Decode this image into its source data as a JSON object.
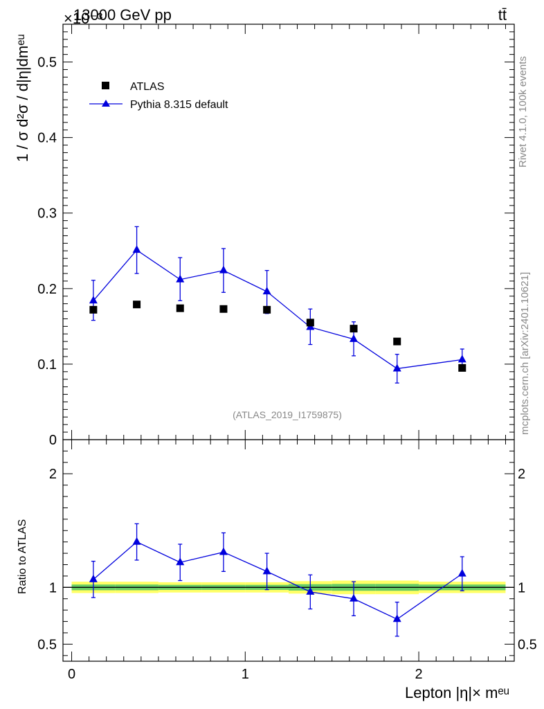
{
  "header": {
    "energy_label": "13000 GeV pp",
    "process_label": "tt̄",
    "exponent_label": "×10⁻³",
    "rivet_label": "Rivet 4.1.0,  100k events",
    "mcplots_label": "mcplots.cern.ch [arXiv:2401.10621]",
    "analysis_label": "(ATLAS_2019_I1759875)"
  },
  "legend": {
    "data_label": "ATLAS",
    "mc_label": "Pythia 8.315 default"
  },
  "colors": {
    "data": "#000000",
    "mc": "#0000dd",
    "band_inner": "#66cc66",
    "band_outer": "#ffff66",
    "grey_text": "#888888"
  },
  "chart_data": [
    {
      "type": "scatter",
      "name": "main",
      "title": "",
      "xlabel": "Lepton |η|× mᵉᵘ",
      "ylabel": "1 / σ  d²σ / d|η|dmᵉᵘ",
      "xlim": [
        -0.05,
        2.55
      ],
      "ylim": [
        0,
        0.55
      ],
      "y_ticks": [
        0.1,
        0.2,
        0.3,
        0.4,
        0.5
      ],
      "y_tick_labels": [
        "0.1",
        "0.2",
        "0.3",
        "0.4",
        "0.5"
      ],
      "y_zero_label": "0",
      "series": [
        {
          "name": "ATLAS",
          "x": [
            0.125,
            0.375,
            0.625,
            0.875,
            1.125,
            1.375,
            1.625,
            1.875,
            2.25
          ],
          "y": [
            0.172,
            0.179,
            0.174,
            0.173,
            0.172,
            0.155,
            0.147,
            0.13,
            0.095
          ]
        },
        {
          "name": "Pythia 8.315 default",
          "x": [
            0.125,
            0.375,
            0.625,
            0.875,
            1.125,
            1.375,
            1.625,
            1.875,
            2.25
          ],
          "y": [
            0.184,
            0.251,
            0.212,
            0.224,
            0.196,
            0.149,
            0.133,
            0.094,
            0.106
          ],
          "yerr_up": [
            0.027,
            0.031,
            0.029,
            0.029,
            0.028,
            0.024,
            0.023,
            0.019,
            0.014
          ],
          "yerr_down": [
            0.026,
            0.031,
            0.028,
            0.029,
            0.029,
            0.023,
            0.022,
            0.019,
            0.012
          ]
        }
      ]
    },
    {
      "type": "line",
      "name": "ratio",
      "ylabel": "Ratio to ATLAS",
      "xlim": [
        -0.05,
        2.55
      ],
      "ylim": [
        0.35,
        2.3
      ],
      "y_ticks": [
        0.5,
        1,
        2
      ],
      "y_tick_labels": [
        "0.5",
        "1",
        "2"
      ],
      "x_ticks": [
        0,
        1,
        2
      ],
      "x_tick_labels": [
        "0",
        "1",
        "2"
      ],
      "band_edges": [
        0,
        0.25,
        0.5,
        0.75,
        1.0,
        1.25,
        1.5,
        1.75,
        2.0,
        2.5
      ],
      "band_inner_half": [
        0.025,
        0.025,
        0.022,
        0.022,
        0.022,
        0.028,
        0.03,
        0.03,
        0.025
      ],
      "band_outer_half": [
        0.05,
        0.05,
        0.045,
        0.045,
        0.045,
        0.055,
        0.06,
        0.06,
        0.05
      ],
      "series": [
        {
          "name": "Pythia 8.315 default / ATLAS",
          "x": [
            0.125,
            0.375,
            0.625,
            0.875,
            1.125,
            1.375,
            1.625,
            1.875,
            2.25
          ],
          "y": [
            1.07,
            1.4,
            1.22,
            1.31,
            1.14,
            0.96,
            0.9,
            0.72,
            1.12
          ],
          "yerr_up": [
            0.16,
            0.16,
            0.16,
            0.17,
            0.16,
            0.15,
            0.15,
            0.15,
            0.15
          ],
          "yerr_down": [
            0.16,
            0.16,
            0.16,
            0.17,
            0.16,
            0.15,
            0.15,
            0.15,
            0.15
          ]
        }
      ]
    }
  ]
}
